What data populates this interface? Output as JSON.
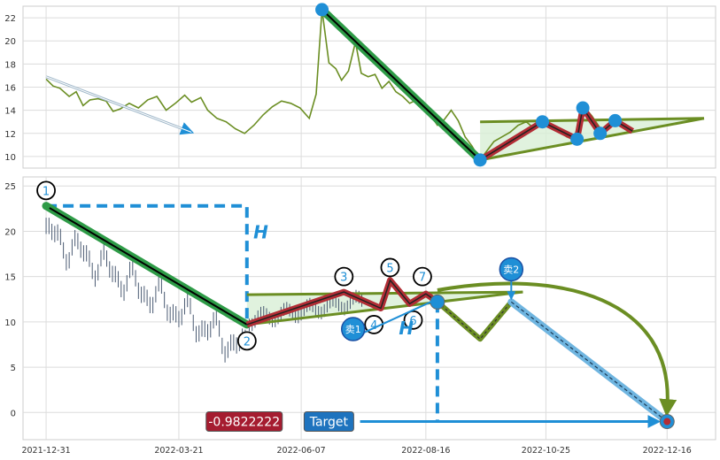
{
  "chart_data": [
    {
      "type": "line",
      "panel": "top",
      "ylim": [
        9,
        23
      ],
      "yticks": [
        10,
        12,
        14,
        16,
        18,
        20,
        22
      ],
      "grid": true,
      "price_series": {
        "color": "#6b8e23",
        "points": [
          [
            0.0,
            16.7
          ],
          [
            0.6,
            16.1
          ],
          [
            1.2,
            15.9
          ],
          [
            2.0,
            15.2
          ],
          [
            2.6,
            15.6
          ],
          [
            3.2,
            14.4
          ],
          [
            3.8,
            14.9
          ],
          [
            4.5,
            15.0
          ],
          [
            5.2,
            14.8
          ],
          [
            5.8,
            13.9
          ],
          [
            6.4,
            14.1
          ],
          [
            7.2,
            14.6
          ],
          [
            8.0,
            14.2
          ],
          [
            8.8,
            14.9
          ],
          [
            9.6,
            15.2
          ],
          [
            10.4,
            14.0
          ],
          [
            11.2,
            14.6
          ],
          [
            12.0,
            15.3
          ],
          [
            12.6,
            14.7
          ],
          [
            13.4,
            15.1
          ],
          [
            14.0,
            14.0
          ],
          [
            14.8,
            13.3
          ],
          [
            15.6,
            13.0
          ],
          [
            16.4,
            12.4
          ],
          [
            17.2,
            12.0
          ],
          [
            18.0,
            12.7
          ],
          [
            18.8,
            13.6
          ],
          [
            19.6,
            14.3
          ],
          [
            20.4,
            14.8
          ],
          [
            21.2,
            14.6
          ],
          [
            22.0,
            14.2
          ],
          [
            22.8,
            13.3
          ],
          [
            23.4,
            15.4
          ],
          [
            23.9,
            22.7
          ],
          [
            24.5,
            18.1
          ],
          [
            25.1,
            17.6
          ],
          [
            25.6,
            16.6
          ],
          [
            26.2,
            17.4
          ],
          [
            26.8,
            19.9
          ],
          [
            27.3,
            17.2
          ],
          [
            27.9,
            16.9
          ],
          [
            28.5,
            17.1
          ],
          [
            29.1,
            15.9
          ],
          [
            29.7,
            16.5
          ],
          [
            30.3,
            15.6
          ],
          [
            30.9,
            15.2
          ],
          [
            31.5,
            14.6
          ],
          [
            32.1,
            14.9
          ],
          [
            32.7,
            14.1
          ],
          [
            33.3,
            13.6
          ],
          [
            33.9,
            12.7
          ],
          [
            34.5,
            13.2
          ],
          [
            35.1,
            14.0
          ],
          [
            35.7,
            13.1
          ],
          [
            36.3,
            11.7
          ],
          [
            36.9,
            10.9
          ],
          [
            37.6,
            9.7
          ],
          [
            38.2,
            10.5
          ],
          [
            38.8,
            11.3
          ],
          [
            39.5,
            11.7
          ],
          [
            40.2,
            12.1
          ],
          [
            40.9,
            12.7
          ],
          [
            41.6,
            13.0
          ],
          [
            42.3,
            12.4
          ],
          [
            43.0,
            13.2
          ],
          [
            43.7,
            12.7
          ],
          [
            44.4,
            12.3
          ],
          [
            45.1,
            11.7
          ],
          [
            45.7,
            11.5
          ],
          [
            46.2,
            13.0
          ],
          [
            46.7,
            14.2
          ],
          [
            47.3,
            13.5
          ],
          [
            47.9,
            12.6
          ],
          [
            48.4,
            12.1
          ],
          [
            49.0,
            12.7
          ],
          [
            49.6,
            13.2
          ],
          [
            50.2,
            12.6
          ],
          [
            50.8,
            12.3
          ]
        ]
      },
      "decline_arrow": [
        [
          0.0,
          16.9
        ],
        [
          12.6,
          12.1
        ]
      ],
      "pattern_line": [
        [
          23.9,
          22.7
        ],
        [
          37.6,
          9.7
        ]
      ],
      "zigzag": [
        [
          37.6,
          9.7
        ],
        [
          43.0,
          13.0
        ],
        [
          46.0,
          11.5
        ],
        [
          46.5,
          14.2
        ],
        [
          48.0,
          12.0
        ],
        [
          49.3,
          13.1
        ],
        [
          50.8,
          12.2
        ]
      ],
      "pivot_markers": [
        [
          23.9,
          22.7
        ],
        [
          37.6,
          9.7
        ],
        [
          43.0,
          13.0
        ],
        [
          46.0,
          11.5
        ],
        [
          46.5,
          14.2
        ],
        [
          48.0,
          12.0
        ],
        [
          49.3,
          13.1
        ]
      ],
      "triangle": {
        "upper": [
          [
            37.6,
            13.0
          ],
          [
            57.0,
            13.3
          ]
        ],
        "lower": [
          [
            37.6,
            9.7
          ],
          [
            57.0,
            13.3
          ]
        ]
      }
    },
    {
      "type": "line",
      "panel": "bottom",
      "xlim": [
        -2,
        58
      ],
      "ylim": [
        -3,
        26
      ],
      "yticks": [
        0,
        5,
        10,
        15,
        20,
        25
      ],
      "x_tick_labels": [
        "2021-12-31",
        "2022-03-21",
        "2022-06-07",
        "2022-08-16",
        "2022-10-25",
        "2022-12-16"
      ],
      "x_tick_positions": [
        0,
        11.5,
        22.1,
        32.9,
        43.3,
        53.8
      ],
      "grid": true,
      "pattern_line": [
        [
          0.0,
          22.8
        ],
        [
          17.4,
          9.7
        ]
      ],
      "zigzag": [
        [
          17.4,
          9.7
        ],
        [
          25.8,
          13.3
        ],
        [
          29.0,
          11.5
        ],
        [
          29.8,
          14.6
        ],
        [
          31.5,
          12.0
        ],
        [
          32.9,
          13.1
        ],
        [
          33.9,
          12.2
        ]
      ],
      "triangle": {
        "upper": [
          [
            17.4,
            13.0
          ],
          [
            41.3,
            13.3
          ]
        ],
        "lower": [
          [
            17.4,
            9.7
          ],
          [
            41.3,
            13.3
          ]
        ]
      },
      "height_line": {
        "x": 17.4,
        "from": 22.8,
        "to": 9.7
      },
      "height_line_2": {
        "x": 33.9,
        "from": 12.2,
        "to": -1.0
      },
      "forecast_path": [
        [
          33.9,
          12.2
        ],
        [
          37.6,
          8.1
        ],
        [
          40.3,
          12.2
        ],
        [
          53.8,
          -1.0
        ]
      ],
      "big_arc": [
        [
          33.9,
          13.5
        ],
        [
          53.8,
          0.3
        ]
      ],
      "target_arrow": [
        [
          27.2,
          -1.0
        ],
        [
          53.8,
          -1.0
        ]
      ],
      "target_point": [
        53.8,
        -1.0
      ],
      "markers": [
        {
          "label": "1",
          "x": 0.0,
          "y": 24.5
        },
        {
          "label": "2",
          "x": 17.4,
          "y": 7.9
        },
        {
          "label": "3",
          "x": 25.8,
          "y": 15.0
        },
        {
          "label": "4",
          "x": 28.4,
          "y": 9.7
        },
        {
          "label": "5",
          "x": 29.8,
          "y": 16.0
        },
        {
          "label": "6",
          "x": 31.8,
          "y": 10.2
        },
        {
          "label": "7",
          "x": 32.6,
          "y": 15.0
        }
      ],
      "sell_markers": [
        {
          "label": "卖1",
          "x": 26.6,
          "y": 9.2
        },
        {
          "label": "卖2",
          "x": 40.3,
          "y": 15.8
        }
      ],
      "h_labels": [
        {
          "label": "H",
          "x": 18.6,
          "y": 19.2
        },
        {
          "label": "H",
          "x": 31.2,
          "y": 8.6
        }
      ],
      "value_box": {
        "label": "-0.9822222",
        "x": 17.7,
        "y": -0.9,
        "color": "#a51c30"
      },
      "target_box": {
        "label": "Target",
        "x": 24.5,
        "y": -0.9,
        "color": "#1e73be"
      }
    }
  ],
  "colors": {
    "price": "#6b8e23",
    "pattern": "#2e9b47",
    "zigzag": "#b22d35",
    "marker": "#1f8fd6",
    "height": "#1f8fd6",
    "forecast": "#6fb5e0",
    "triangle_fill": "#d8efd6",
    "olive": "#6b8e23"
  }
}
